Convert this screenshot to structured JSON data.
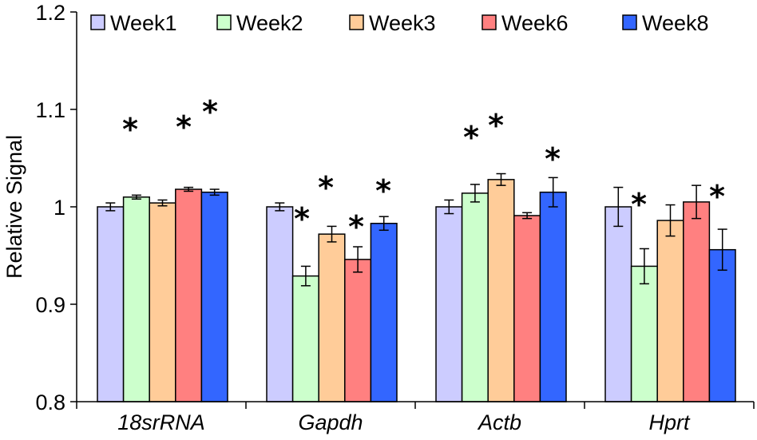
{
  "chart_data": {
    "type": "bar",
    "title": "",
    "xlabel": "",
    "ylabel": "Relative Signal",
    "ylim": [
      0.8,
      1.2
    ],
    "yticks": [
      "0.8",
      "0.9",
      "1",
      "1.1",
      "1.2"
    ],
    "yticks_values": [
      0.8,
      0.9,
      1.0,
      1.1,
      1.2
    ],
    "grid": false,
    "legend_position": "top",
    "categories": [
      "18srRNA",
      "Gapdh",
      "Actb",
      "Hprt"
    ],
    "series": [
      {
        "name": "Week1",
        "color": "#ccccff",
        "values": [
          1.0,
          1.0,
          1.0,
          1.0
        ],
        "errors": [
          0.004,
          0.004,
          0.007,
          0.02
        ],
        "significant": [
          false,
          false,
          false,
          false
        ]
      },
      {
        "name": "Week2",
        "color": "#ccffcc",
        "values": [
          1.01,
          0.929,
          1.014,
          0.939
        ],
        "errors": [
          0.002,
          0.01,
          0.009,
          0.018
        ],
        "significant": [
          true,
          true,
          true,
          true
        ]
      },
      {
        "name": "Week3",
        "color": "#ffcc99",
        "values": [
          1.004,
          0.972,
          1.028,
          0.986
        ],
        "errors": [
          0.003,
          0.008,
          0.006,
          0.016
        ],
        "significant": [
          false,
          true,
          true,
          false
        ]
      },
      {
        "name": "Week6",
        "color": "#ff8080",
        "values": [
          1.018,
          0.946,
          0.991,
          1.005
        ],
        "errors": [
          0.002,
          0.013,
          0.003,
          0.017
        ],
        "significant": [
          true,
          true,
          false,
          false
        ]
      },
      {
        "name": "Week8",
        "color": "#3366ff",
        "values": [
          1.015,
          0.983,
          1.015,
          0.956
        ],
        "errors": [
          0.003,
          0.007,
          0.015,
          0.021
        ],
        "significant": [
          true,
          true,
          true,
          true
        ]
      }
    ],
    "significance_marker": "*"
  }
}
